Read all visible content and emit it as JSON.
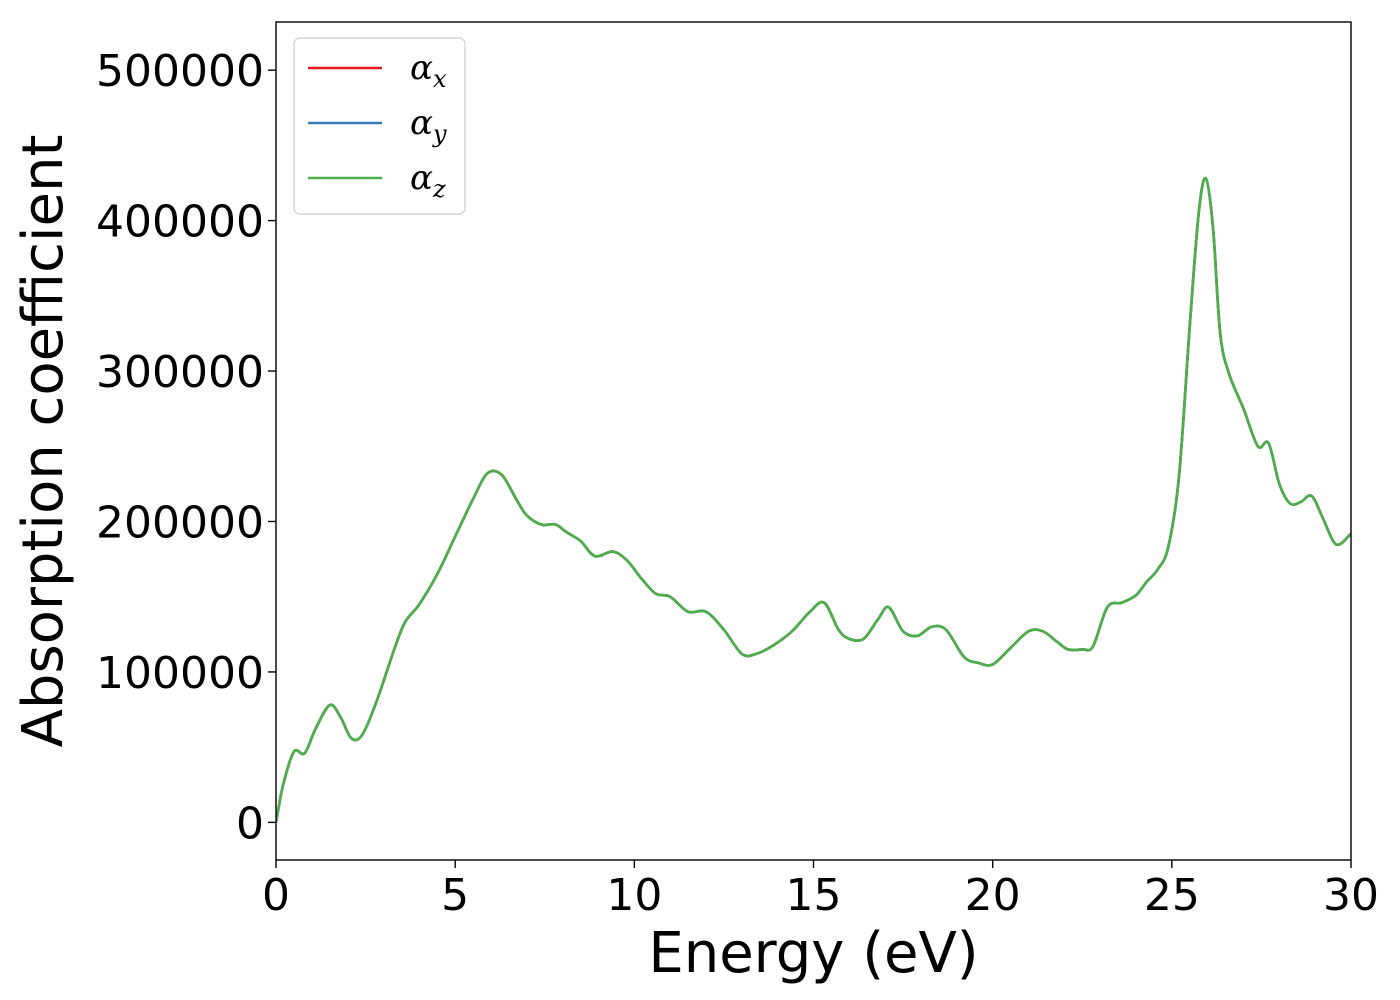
{
  "chart_data": {
    "type": "line",
    "title": "",
    "xlabel": "Energy (eV)",
    "ylabel": "Absorption coefficient",
    "xlim": [
      0,
      30
    ],
    "ylim": [
      -25000,
      532000
    ],
    "xticks": [
      0,
      5,
      10,
      15,
      20,
      25,
      30
    ],
    "yticks": [
      0,
      100000,
      200000,
      300000,
      400000,
      500000
    ],
    "grid": false,
    "legend_position": "top-left",
    "series": [
      {
        "name": "α",
        "subscript": "x",
        "color": "#e41a1c"
      },
      {
        "name": "α",
        "subscript": "y",
        "color": "#377eb8"
      },
      {
        "name": "α",
        "subscript": "z",
        "color": "#4daf4a"
      }
    ],
    "x": [
      0.0,
      0.2,
      0.5,
      0.8,
      1.1,
      1.5,
      1.8,
      2.1,
      2.4,
      2.8,
      3.3,
      3.6,
      4.0,
      4.5,
      5.0,
      5.5,
      5.9,
      6.3,
      6.7,
      7.0,
      7.4,
      7.8,
      8.1,
      8.5,
      8.9,
      9.4,
      9.8,
      10.2,
      10.6,
      11.0,
      11.5,
      12.0,
      12.5,
      13.0,
      13.4,
      13.9,
      14.4,
      14.9,
      15.3,
      15.7,
      16.0,
      16.4,
      16.8,
      17.1,
      17.5,
      17.9,
      18.3,
      18.7,
      19.2,
      19.6,
      20.0,
      20.5,
      21.0,
      21.4,
      21.8,
      22.1,
      22.5,
      22.8,
      23.2,
      23.6,
      24.0,
      24.3,
      24.6,
      24.9,
      25.2,
      25.5,
      25.75,
      25.95,
      26.15,
      26.35,
      26.6,
      27.0,
      27.4,
      27.7,
      28.0,
      28.3,
      28.6,
      28.9,
      29.2,
      29.5,
      29.7,
      30.0
    ],
    "y": [
      0,
      25000,
      47000,
      46000,
      62000,
      78000,
      70000,
      56000,
      58000,
      80000,
      115000,
      133000,
      145000,
      165000,
      190000,
      215000,
      232000,
      231000,
      215000,
      204000,
      198000,
      198000,
      193000,
      187000,
      177000,
      180000,
      174000,
      162000,
      152000,
      150000,
      140000,
      140000,
      128000,
      112000,
      112000,
      118000,
      127000,
      140000,
      146000,
      128000,
      122000,
      122000,
      135000,
      143000,
      127000,
      124000,
      130000,
      128000,
      110000,
      106000,
      105000,
      116000,
      127000,
      127000,
      120000,
      115000,
      115000,
      117000,
      143000,
      146000,
      151000,
      160000,
      168000,
      183000,
      230000,
      330000,
      405000,
      428000,
      395000,
      325000,
      298000,
      275000,
      250000,
      252000,
      225000,
      212000,
      213000,
      217000,
      203000,
      187000,
      185000,
      192000
    ]
  }
}
